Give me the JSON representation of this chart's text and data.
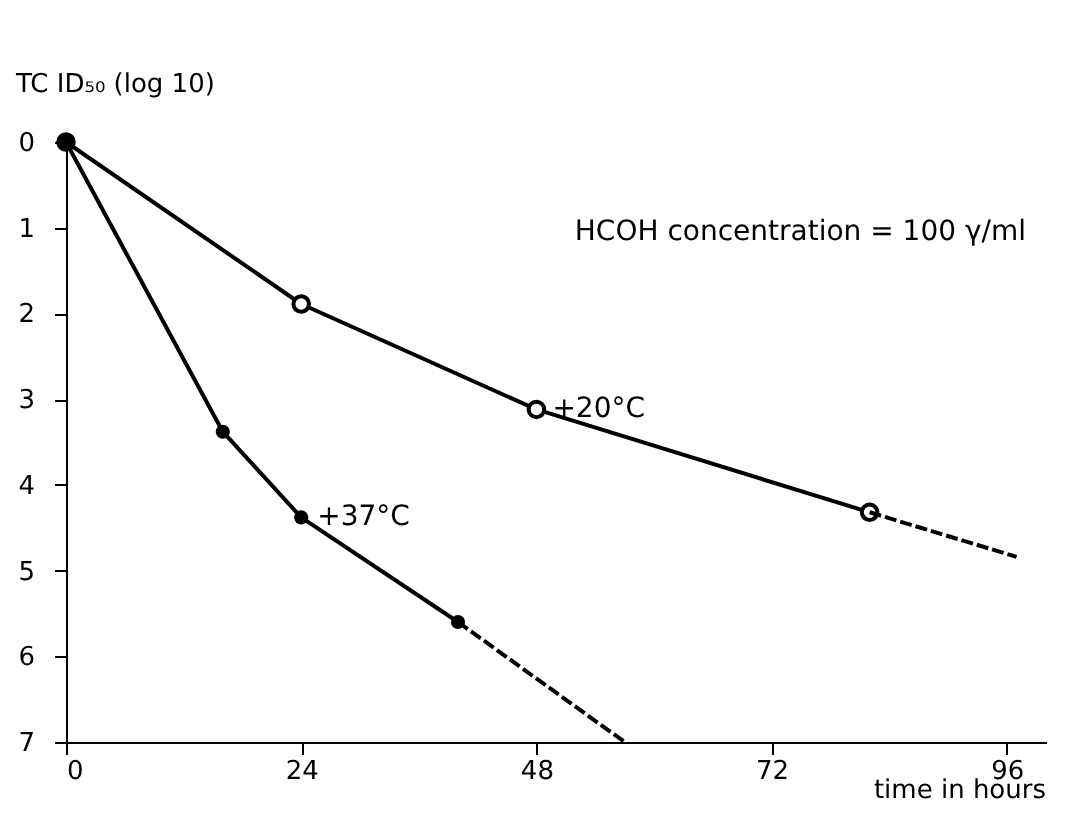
{
  "chart_data": {
    "type": "line",
    "ylabel": "TC ID₅₀ (log 10)",
    "xlabel": "time in hours",
    "annotations": [
      "HCOH concentration = 100 γ/ml"
    ],
    "xlim": [
      0,
      100
    ],
    "xticks": [
      0,
      24,
      48,
      72,
      96
    ],
    "ylim": [
      7,
      0
    ],
    "yticks": [
      0,
      1,
      2,
      3,
      4,
      5,
      6,
      7
    ],
    "grid": false,
    "series": [
      {
        "name": "+20°C",
        "color": "#000000",
        "x": [
          0,
          24,
          48,
          82
        ],
        "values": [
          0,
          1.89,
          3.12,
          4.32
        ],
        "marker": "circle",
        "line_style": "solid"
      },
      {
        "color": "#000000",
        "x": [
          82,
          97
        ],
        "values": [
          4.32,
          4.84
        ],
        "marker": "none",
        "line_style": "dashed"
      },
      {
        "name": "+37°C",
        "color": "#000000",
        "x": [
          0,
          16,
          24,
          40
        ],
        "values": [
          0,
          3.38,
          4.38,
          5.6
        ],
        "marker": "circle",
        "line_style": "solid"
      },
      {
        "color": "#000000",
        "x": [
          40,
          57
        ],
        "values": [
          5.6,
          7
        ],
        "marker": "none",
        "line_style": "dashed"
      }
    ]
  }
}
